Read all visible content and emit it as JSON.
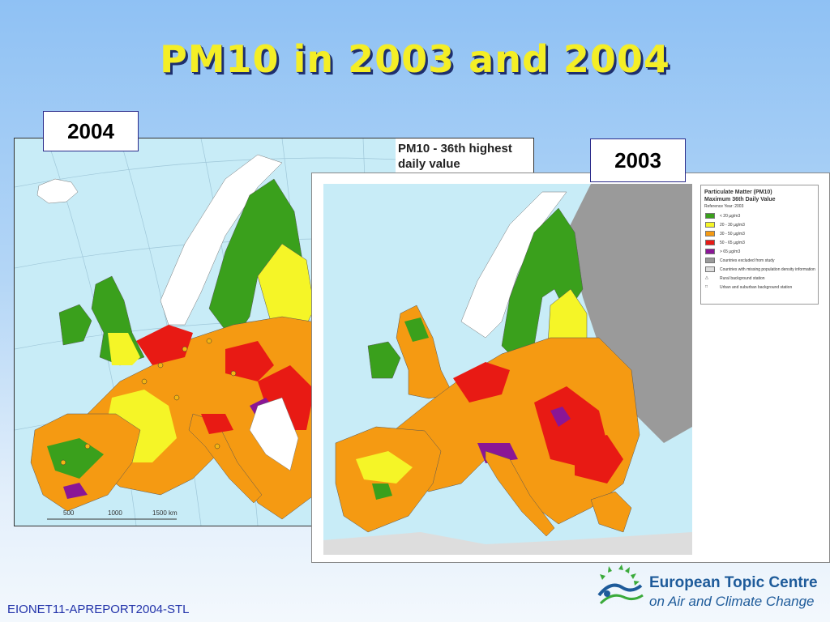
{
  "title": "PM10 in 2003 and 2004",
  "map_2004": {
    "label": "2004",
    "legend_title_line1": "PM10 - 36th highest",
    "legend_title_line2": "daily value",
    "scale_ticks": [
      "500",
      "1000",
      "1500 km"
    ]
  },
  "map_2003": {
    "label": "2003",
    "legend": {
      "title_line1": "Particulate Matter (PM10)",
      "title_line2": "Maximum 36th Daily Value",
      "subtitle": "Reference Year: 2003",
      "classes": [
        {
          "label": "< 20 µg/m3",
          "color": "#3aa01c"
        },
        {
          "label": "20 - 30 µg/m3",
          "color": "#f5f527"
        },
        {
          "label": "30 - 50 µg/m3",
          "color": "#f59a12"
        },
        {
          "label": "50 - 65 µg/m3",
          "color": "#e81a14"
        },
        {
          "label": "> 65 µg/m3",
          "color": "#8a1696"
        }
      ],
      "other": [
        {
          "label": "Countries excluded from study",
          "color": "#9a9a9a"
        },
        {
          "label": "Countries with missing population density information",
          "color": "#dddddd"
        },
        {
          "label": "Rural background station",
          "color": "#ffffff"
        },
        {
          "label": "Urban and suburban background station",
          "color": "#ffffff"
        }
      ]
    }
  },
  "footer": "EIONET11-APREPORT2004-STL",
  "logo": {
    "line1": "European Topic Centre",
    "line2": "on Air and Climate Change"
  },
  "colors": {
    "title": "#f4ee26",
    "sea": "#c8ecf7",
    "logo_text": "#1e5b9a"
  }
}
